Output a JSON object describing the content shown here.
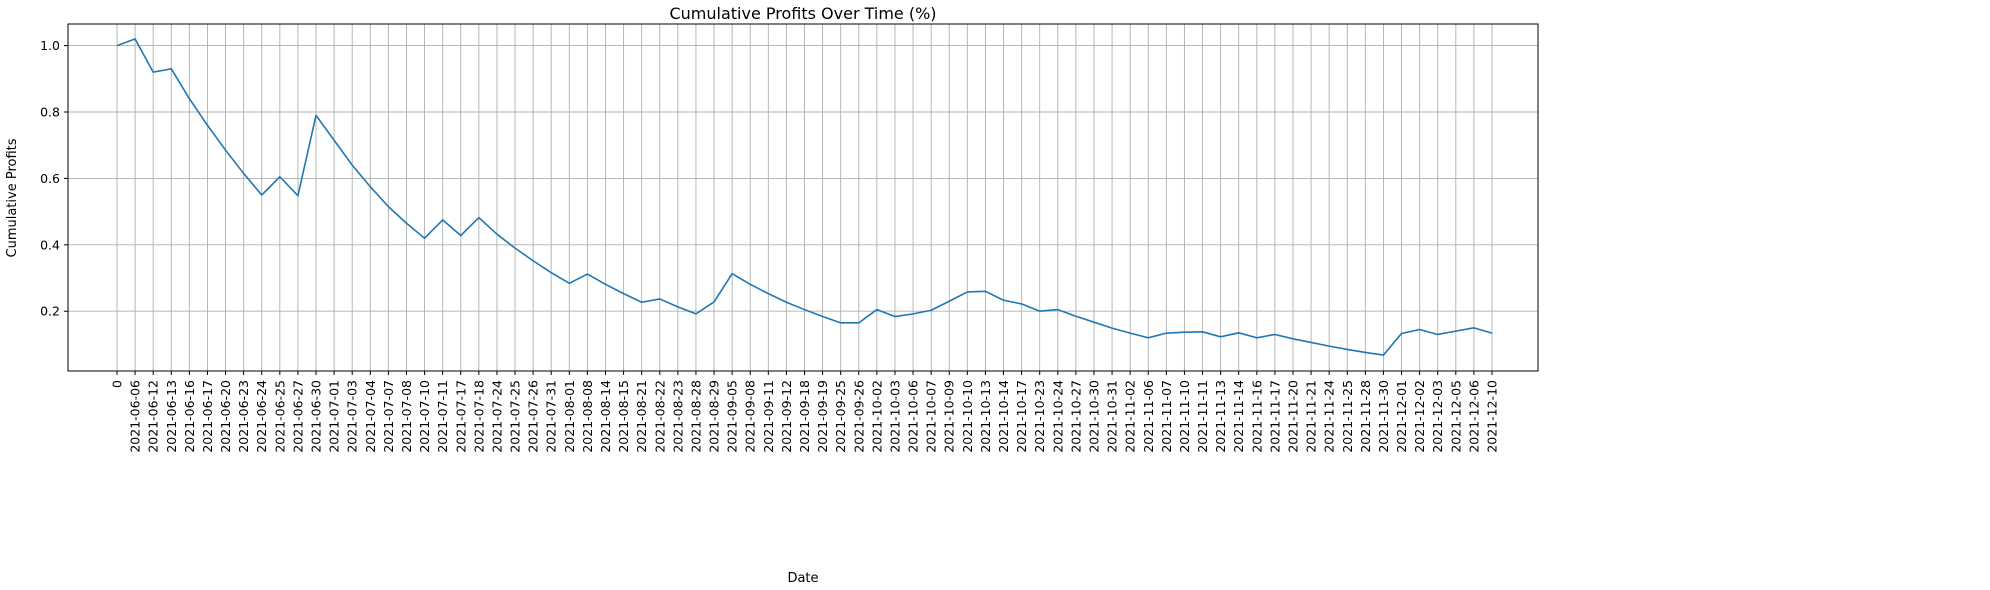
{
  "chart_data": {
    "type": "line",
    "title": "Cumulative Profits Over Time (%)",
    "xlabel": "Date",
    "ylabel": "Cumulative Profits",
    "categories": [
      "0",
      "2021-06-06",
      "2021-06-12",
      "2021-06-13",
      "2021-06-16",
      "2021-06-17",
      "2021-06-20",
      "2021-06-23",
      "2021-06-24",
      "2021-06-25",
      "2021-06-27",
      "2021-06-30",
      "2021-07-01",
      "2021-07-03",
      "2021-07-04",
      "2021-07-07",
      "2021-07-08",
      "2021-07-10",
      "2021-07-11",
      "2021-07-17",
      "2021-07-18",
      "2021-07-24",
      "2021-07-25",
      "2021-07-26",
      "2021-07-31",
      "2021-08-01",
      "2021-08-08",
      "2021-08-14",
      "2021-08-15",
      "2021-08-21",
      "2021-08-22",
      "2021-08-23",
      "2021-08-28",
      "2021-08-29",
      "2021-09-05",
      "2021-09-08",
      "2021-09-11",
      "2021-09-12",
      "2021-09-18",
      "2021-09-19",
      "2021-09-25",
      "2021-09-26",
      "2021-10-02",
      "2021-10-03",
      "2021-10-06",
      "2021-10-07",
      "2021-10-09",
      "2021-10-10",
      "2021-10-13",
      "2021-10-14",
      "2021-10-17",
      "2021-10-23",
      "2021-10-24",
      "2021-10-27",
      "2021-10-30",
      "2021-10-31",
      "2021-11-02",
      "2021-11-06",
      "2021-11-07",
      "2021-11-10",
      "2021-11-11",
      "2021-11-13",
      "2021-11-14",
      "2021-11-16",
      "2021-11-17",
      "2021-11-20",
      "2021-11-21",
      "2021-11-24",
      "2021-11-25",
      "2021-11-28",
      "2021-11-30",
      "2021-12-01",
      "2021-12-02",
      "2021-12-03",
      "2021-12-05",
      "2021-12-06",
      "2021-12-10"
    ],
    "series": [
      {
        "values": [
          1.0,
          1.02,
          0.92,
          0.93,
          0.84,
          0.76,
          0.685,
          0.615,
          0.55,
          0.605,
          0.548,
          0.79,
          0.715,
          0.64,
          0.575,
          0.515,
          0.465,
          0.42,
          0.475,
          0.428,
          0.482,
          0.432,
          0.39,
          0.352,
          0.316,
          0.284,
          0.312,
          0.281,
          0.253,
          0.227,
          0.237,
          0.213,
          0.192,
          0.228,
          0.313,
          0.281,
          0.253,
          0.227,
          0.205,
          0.184,
          0.165,
          0.165,
          0.205,
          0.184,
          0.192,
          0.203,
          0.23,
          0.258,
          0.26,
          0.233,
          0.222,
          0.2,
          0.205,
          0.185,
          0.167,
          0.149,
          0.134,
          0.12,
          0.134,
          0.137,
          0.138,
          0.123,
          0.135,
          0.12,
          0.13,
          0.117,
          0.106,
          0.095,
          0.085,
          0.076,
          0.068,
          0.133,
          0.145,
          0.13,
          0.14,
          0.15,
          0.134
        ]
      }
    ],
    "yticks": [
      0.2,
      0.4,
      0.6,
      0.8,
      1.0
    ],
    "ylim": [
      0.02,
      1.065
    ],
    "grid": true,
    "colors": {
      "line": "#1f77b4"
    }
  }
}
